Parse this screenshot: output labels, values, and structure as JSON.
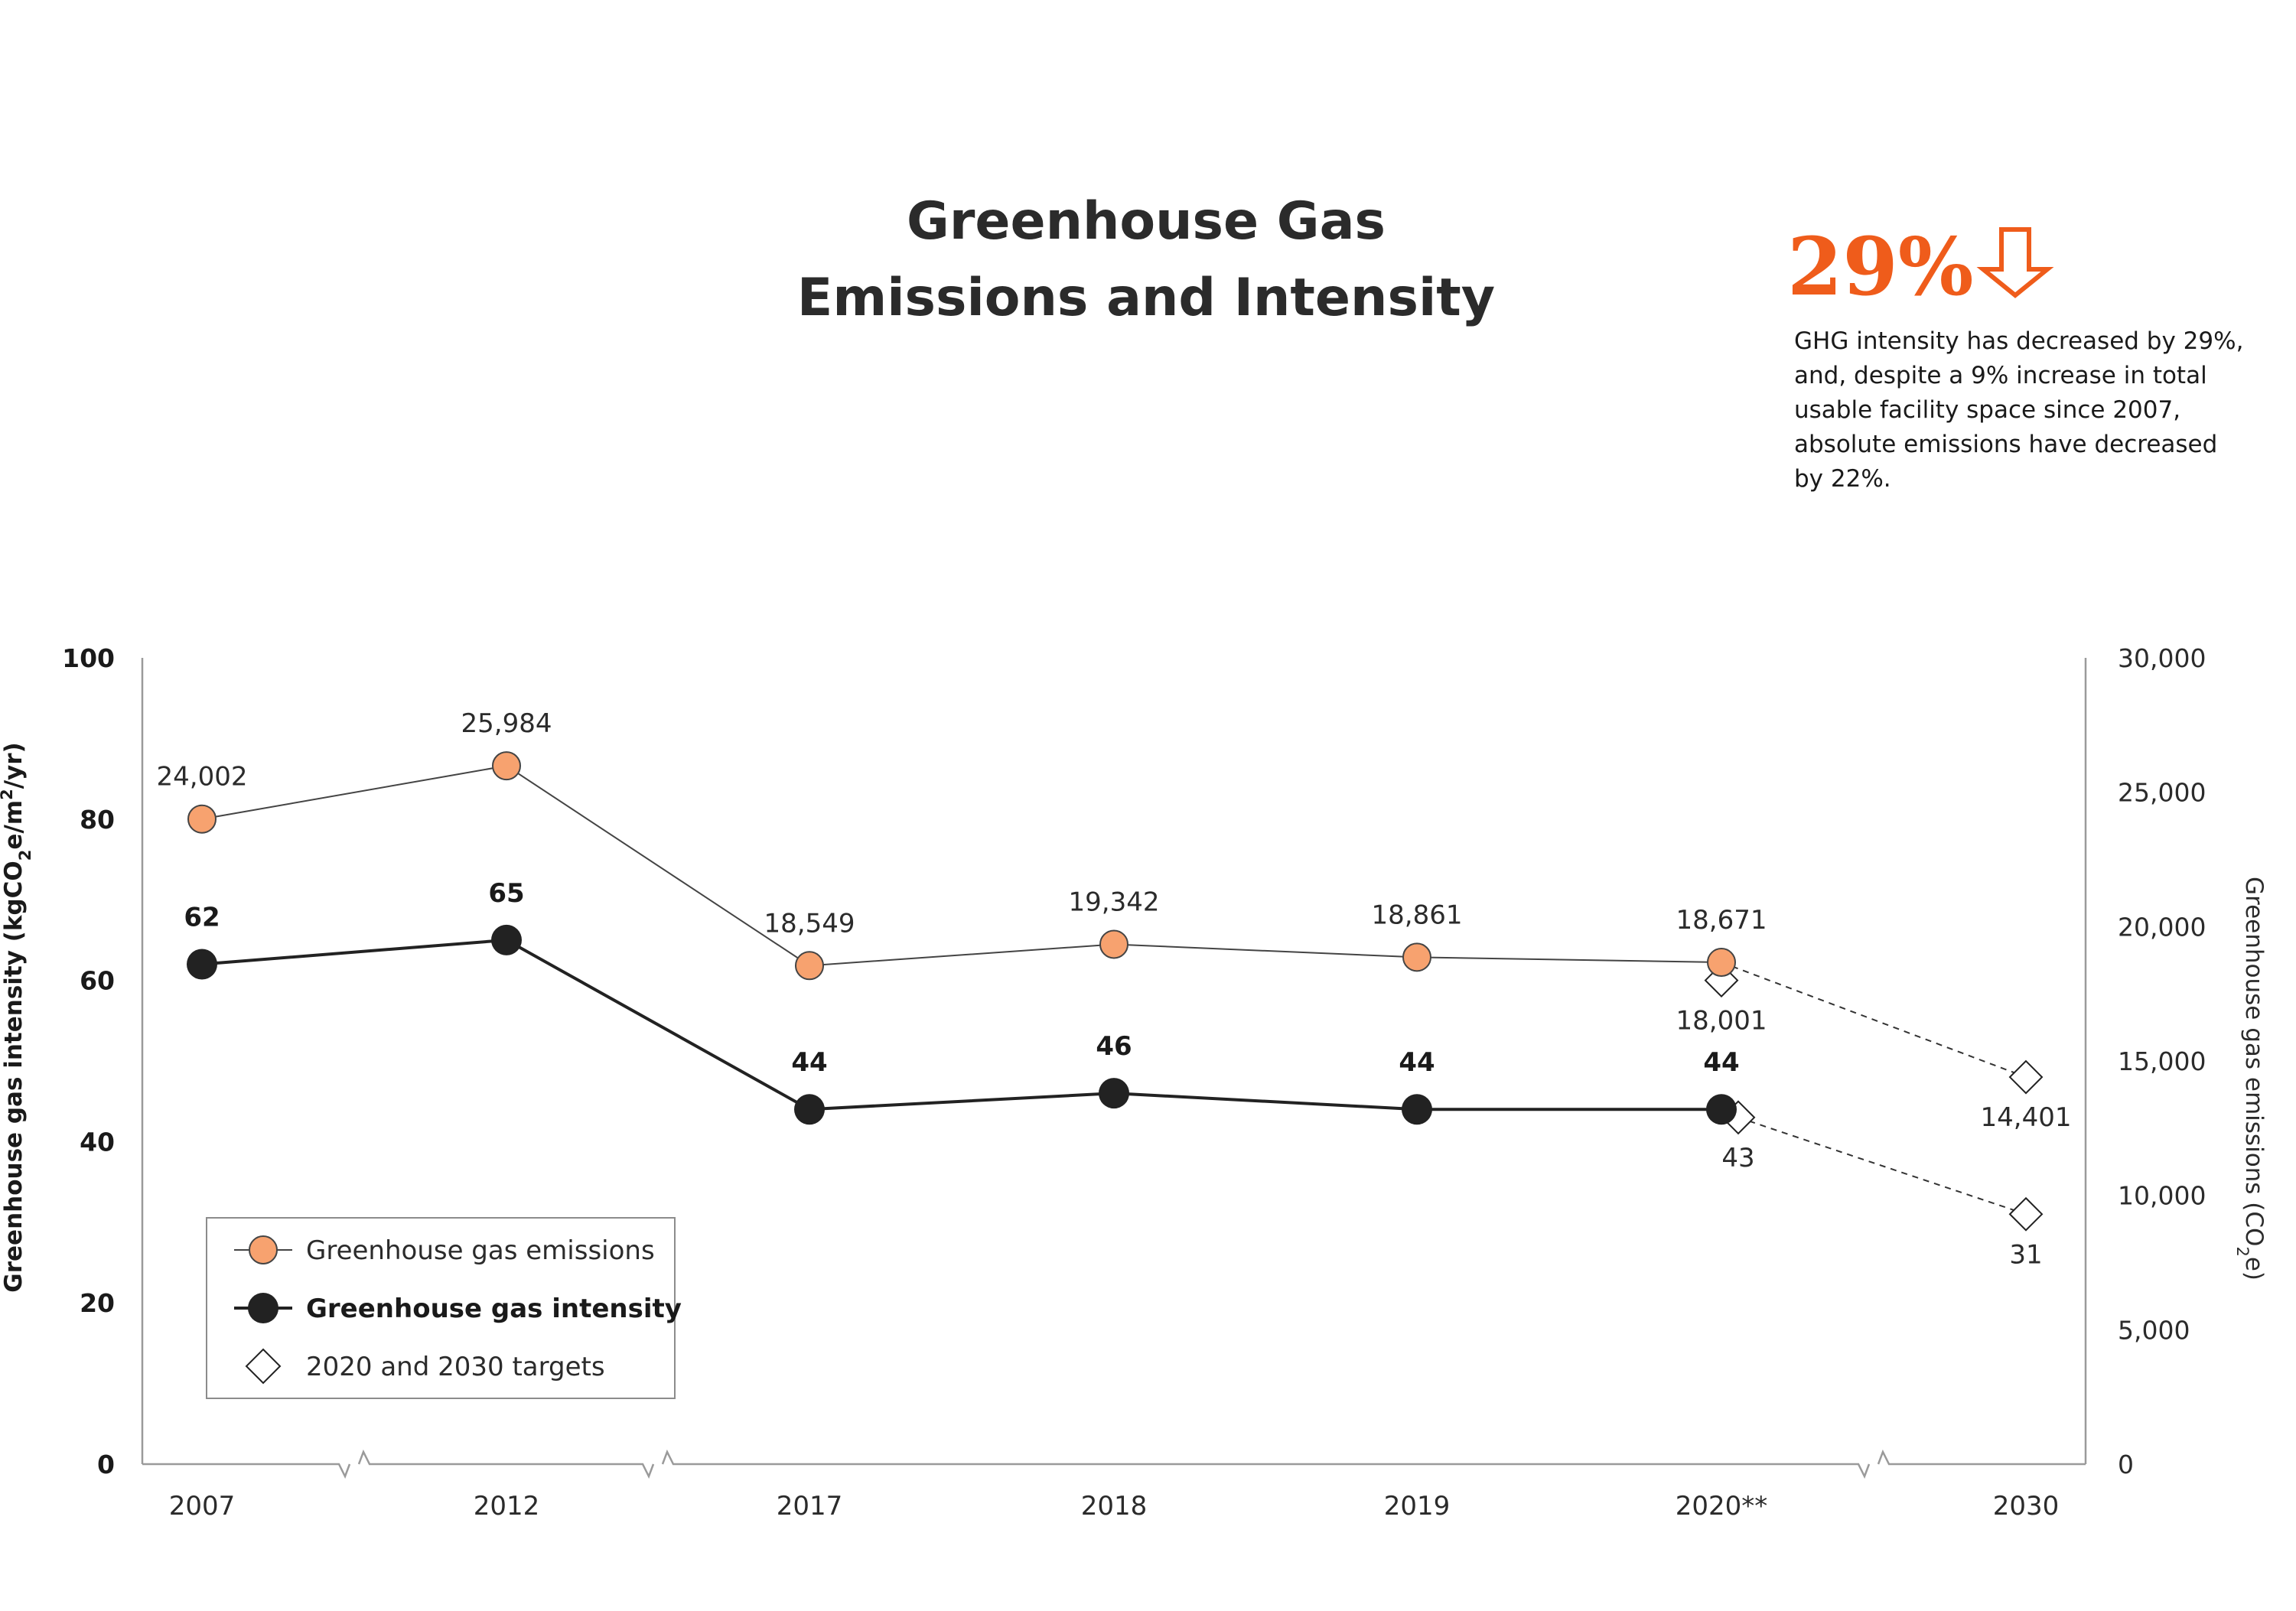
{
  "colors": {
    "emissions_fill": "#f7a26f",
    "intensity_fill": "#222222",
    "accent": "#ef5c1b",
    "axis": "#9a9a9a"
  },
  "callout": {
    "value": "29%",
    "icon": "down-arrow-icon",
    "lines": [
      "GHG intensity has decreased by 29%,",
      "and, despite a 9% increase in total",
      "usable facility space since 2007,",
      "absolute emissions have decreased",
      "by 22%."
    ]
  },
  "chart_data": {
    "type": "line",
    "title": [
      "Greenhouse Gas",
      "Emissions and Intensity"
    ],
    "categories": [
      "2007",
      "2012",
      "2017",
      "2018",
      "2019",
      "2020**",
      "2030"
    ],
    "y_left": {
      "label_parts": [
        "Greenhouse gas intensity (kgCO",
        "2",
        "e/m",
        "2",
        "/yr)"
      ],
      "ylim": [
        0,
        100
      ],
      "ticks": [
        "0",
        "20",
        "40",
        "60",
        "80",
        "100"
      ]
    },
    "y_right": {
      "label_parts": [
        "Greenhouse gas emissions (CO",
        "2",
        "e)"
      ],
      "ylim": [
        0,
        30000
      ],
      "ticks": [
        "0",
        "5,000",
        "10,000",
        "15,000",
        "20,000",
        "25,000",
        "30,000"
      ]
    },
    "series": [
      {
        "name": "Greenhouse gas emissions",
        "axis": "right",
        "marker": "circle",
        "x": [
          "2007",
          "2012",
          "2017",
          "2018",
          "2019",
          "2020**"
        ],
        "values": [
          24002,
          25984,
          18549,
          19342,
          18861,
          18671
        ],
        "labels": [
          "24,002",
          "25,984",
          "18,549",
          "19,342",
          "18,861",
          "18,671"
        ]
      },
      {
        "name": "Greenhouse gas intensity",
        "axis": "left",
        "marker": "circle",
        "x": [
          "2007",
          "2012",
          "2017",
          "2018",
          "2019",
          "2020**"
        ],
        "values": [
          62,
          65,
          44,
          46,
          44,
          44
        ],
        "labels": [
          "62",
          "65",
          "44",
          "46",
          "44",
          "44"
        ]
      }
    ],
    "targets": {
      "name": "2020 and 2030 targets",
      "marker": "diamond",
      "emissions": [
        {
          "x": "2020**",
          "value": 18001,
          "label": "18,001"
        },
        {
          "x": "2030",
          "value": 14401,
          "label": "14,401"
        }
      ],
      "intensity": [
        {
          "x": "2020**",
          "value": 43,
          "label": "43"
        },
        {
          "x": "2030",
          "value": 31,
          "label": "31"
        }
      ]
    },
    "axis_breaks_between": [
      [
        "2007",
        "2012"
      ],
      [
        "2012",
        "2017"
      ],
      [
        "2020**",
        "2030"
      ]
    ],
    "legend": "bottom-left",
    "grid": false
  }
}
